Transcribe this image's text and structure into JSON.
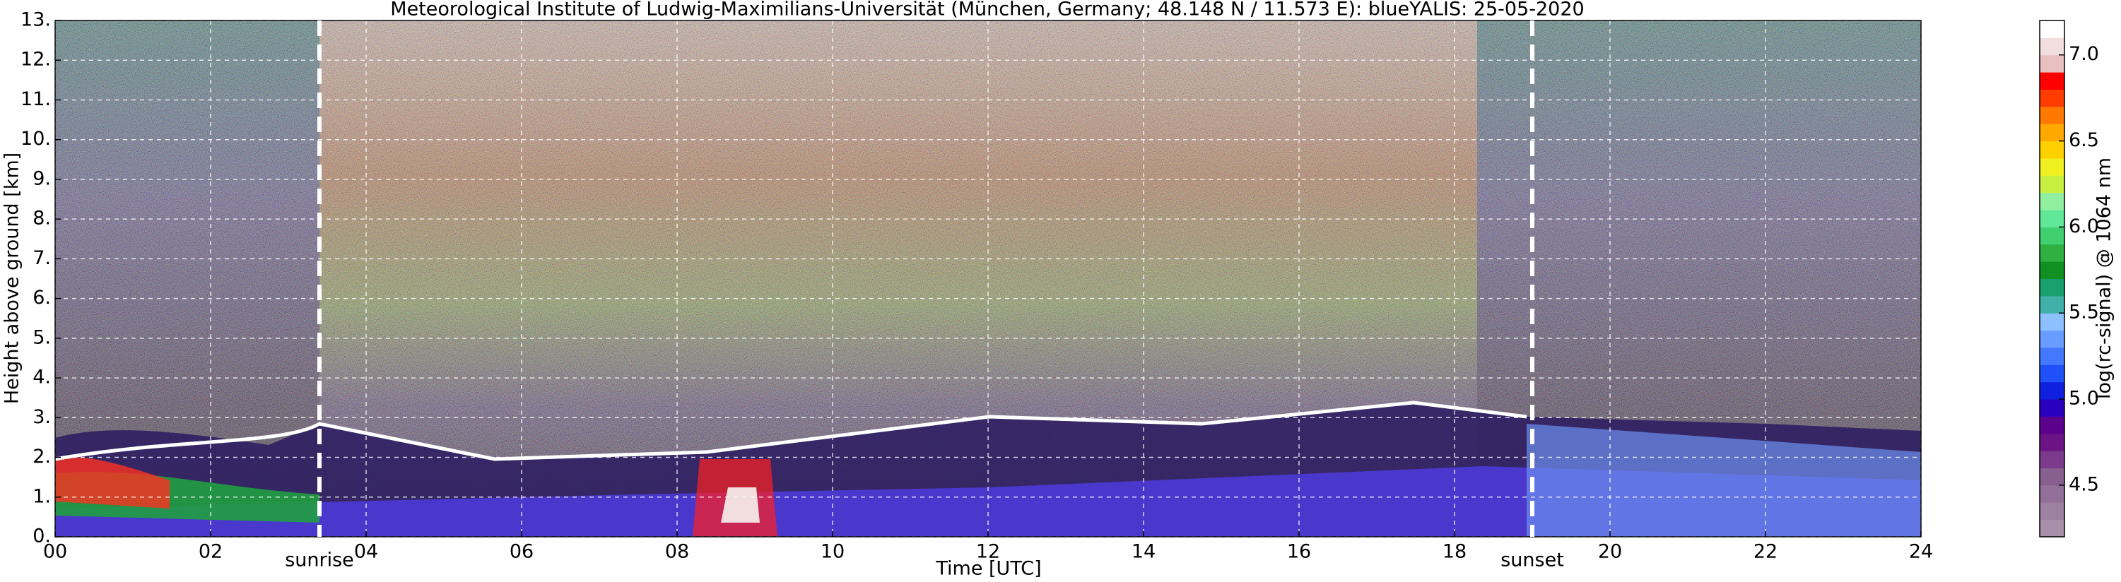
{
  "chart_data": {
    "type": "heatmap",
    "title": "Meteorological Institute of Ludwig-Maximilians-Universität (München, Germany; 48.148 N / 11.573 E):    blueYALIS: 25-05-2020",
    "x_label": "Time [UTC]",
    "y_label": "Height above ground [km]",
    "xlim": [
      0,
      24
    ],
    "xticks": [
      {
        "value": 0,
        "label": "00"
      },
      {
        "value": 2,
        "label": "02"
      },
      {
        "value": 4,
        "label": "04"
      },
      {
        "value": 6,
        "label": "06"
      },
      {
        "value": 8,
        "label": "08"
      },
      10,
      12,
      14,
      16,
      18,
      20,
      22,
      24
    ],
    "ylim": [
      0,
      13
    ],
    "yticks": [
      {
        "value": 0,
        "label": "0."
      },
      {
        "value": 1,
        "label": "1."
      },
      {
        "value": 2,
        "label": "2."
      },
      {
        "value": 3,
        "label": "3."
      },
      {
        "value": 4,
        "label": "4."
      },
      {
        "value": 5,
        "label": "5."
      },
      {
        "value": 6,
        "label": "6."
      },
      {
        "value": 7,
        "label": "7."
      },
      {
        "value": 8,
        "label": "8."
      },
      {
        "value": 9,
        "label": "9."
      },
      {
        "value": 10,
        "label": "10."
      },
      {
        "value": 11,
        "label": "11."
      },
      {
        "value": 12,
        "label": "12."
      },
      {
        "value": 13,
        "label": "13."
      }
    ],
    "grid": true,
    "annotations": [
      {
        "text": "sunrise",
        "x": 3.4
      },
      {
        "text": "sunset",
        "x": 19.0
      }
    ],
    "colorbar": {
      "label": "log(rc-signal) @ 1064 nm",
      "lim": [
        4.2,
        7.2
      ],
      "ticks": [
        4.5,
        {
          "value": 5,
          "label": "5.0"
        },
        5.5,
        {
          "value": 6,
          "label": "6.0"
        },
        6.5,
        {
          "value": 7,
          "label": "7.0"
        }
      ],
      "colors": [
        "#a990aa",
        "#9e80a2",
        "#93709a",
        "#886090",
        "#7c3a8c",
        "#6c1486",
        "#5c008e",
        "#2a00c0",
        "#1020e0",
        "#2050f8",
        "#4478ff",
        "#689cff",
        "#8cc0ff",
        "#40b0a8",
        "#18a070",
        "#109020",
        "#30b040",
        "#40d070",
        "#60e898",
        "#90f0a0",
        "#c8f040",
        "#f0f020",
        "#ffd000",
        "#ffa800",
        "#ff7800",
        "#ff3c00",
        "#ff0000",
        "#e8c0c0",
        "#f2dede",
        "#ffffff"
      ]
    }
  }
}
